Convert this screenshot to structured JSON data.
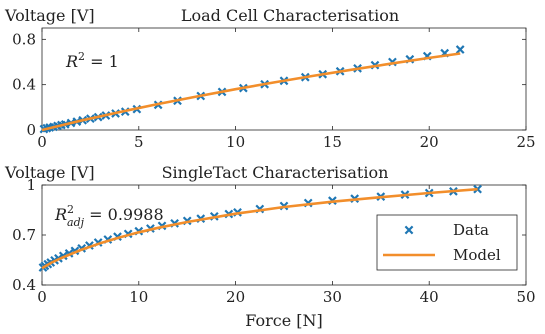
{
  "chart_data": [
    {
      "type": "scatter",
      "title": "Load Cell Characterisation",
      "ylabel": "Voltage [V]",
      "xlabel": "",
      "xlim": [
        0,
        25
      ],
      "ylim": [
        0,
        0.9
      ],
      "xticks": [
        "0",
        "5",
        "10",
        "15",
        "20",
        "25"
      ],
      "yticks": [
        "0",
        "0.4",
        "0.8"
      ],
      "annotation": {
        "lhs": "R",
        "sup": "2",
        "rhs": " = 1"
      },
      "grid": false,
      "series": [
        {
          "name": "Data",
          "marker": "x",
          "color": "#1f77b4",
          "x": [
            0.1,
            0.25,
            0.4,
            0.6,
            0.8,
            1.0,
            1.2,
            1.5,
            1.8,
            2.1,
            2.5,
            2.9,
            3.3,
            3.8,
            4.3,
            4.9,
            6.0,
            7.0,
            8.2,
            9.3,
            10.4,
            11.5,
            12.5,
            13.6,
            14.5,
            15.4,
            16.3,
            17.2,
            18.1,
            19.0,
            19.9,
            20.8,
            21.6
          ],
          "y": [
            0.008,
            0.016,
            0.022,
            0.028,
            0.036,
            0.044,
            0.05,
            0.062,
            0.074,
            0.086,
            0.1,
            0.114,
            0.128,
            0.146,
            0.162,
            0.184,
            0.222,
            0.258,
            0.3,
            0.336,
            0.37,
            0.404,
            0.434,
            0.466,
            0.492,
            0.518,
            0.544,
            0.572,
            0.6,
            0.624,
            0.652,
            0.678,
            0.71
          ]
        },
        {
          "name": "Model",
          "line": true,
          "color": "#f28e2b",
          "x": [
            0,
            2,
            4,
            6,
            8,
            10,
            12,
            14,
            16,
            18,
            20,
            21.6
          ],
          "y": [
            0.0,
            0.082,
            0.158,
            0.229,
            0.296,
            0.36,
            0.42,
            0.477,
            0.532,
            0.585,
            0.636,
            0.675
          ]
        }
      ]
    },
    {
      "type": "scatter",
      "title": "SingleTact Characterisation",
      "ylabel": "Voltage [V]",
      "xlabel": "Force [N]",
      "xlim": [
        0,
        50
      ],
      "ylim": [
        0.4,
        1.0
      ],
      "xticks": [
        "0",
        "10",
        "20",
        "30",
        "40",
        "50"
      ],
      "yticks": [
        "0.4",
        "0.7",
        "1"
      ],
      "annotation": {
        "lhs": "R",
        "sup": "2",
        "sub": "adj",
        "rhs": " = 0.9988"
      },
      "grid": false,
      "legend_position": "lower-right",
      "series": [
        {
          "name": "Data",
          "marker": "x",
          "color": "#1f77b4",
          "x": [
            0.1,
            0.3,
            0.6,
            0.9,
            1.3,
            1.7,
            2.2,
            2.8,
            3.4,
            4.1,
            4.9,
            5.8,
            6.8,
            7.8,
            8.9,
            10.0,
            11.2,
            12.4,
            13.7,
            15.0,
            16.4,
            17.8,
            19.3,
            20.2,
            22.5,
            25.0,
            27.5,
            30.0,
            32.3,
            35.0,
            37.5,
            40.0,
            42.5,
            45.0
          ],
          "y": [
            0.505,
            0.515,
            0.525,
            0.535,
            0.548,
            0.56,
            0.575,
            0.59,
            0.605,
            0.62,
            0.637,
            0.655,
            0.673,
            0.69,
            0.707,
            0.723,
            0.739,
            0.755,
            0.77,
            0.785,
            0.798,
            0.812,
            0.826,
            0.836,
            0.856,
            0.874,
            0.892,
            0.906,
            0.918,
            0.93,
            0.942,
            0.952,
            0.962,
            0.975
          ]
        },
        {
          "name": "Model",
          "line": true,
          "color": "#f28e2b",
          "x": [
            0,
            1,
            2,
            4,
            6,
            8,
            10,
            12,
            15,
            20,
            25,
            30,
            35,
            40,
            45
          ],
          "y": [
            0.5,
            0.535,
            0.562,
            0.61,
            0.65,
            0.685,
            0.716,
            0.743,
            0.778,
            0.828,
            0.868,
            0.9,
            0.927,
            0.952,
            0.975
          ]
        }
      ]
    }
  ]
}
